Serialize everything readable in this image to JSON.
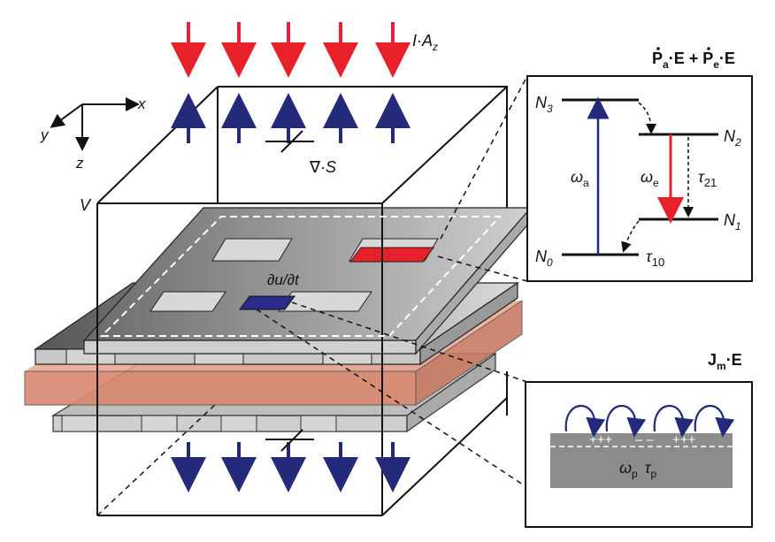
{
  "labels": {
    "incident_flux": "I·A",
    "incident_flux_sub": "z",
    "poynting": "∇·S",
    "volume": "V",
    "time_derivative": "∂u/∂t",
    "axis_x": "x",
    "axis_y": "y",
    "axis_z": "z"
  },
  "gain_panel": {
    "title_P": "P",
    "title_sub_a": "a",
    "title_dot_E": "·E + ",
    "title_P2": "P",
    "title_sub_e": "e",
    "title_dot_E2": "·E",
    "level_N3": "N",
    "level_N3_sub": "3",
    "level_N2": "N",
    "level_N2_sub": "2",
    "level_N1": "N",
    "level_N1_sub": "1",
    "level_N0": "N",
    "level_N0_sub": "0",
    "omega_a": "ω",
    "omega_a_sub": "a",
    "omega_e": "ω",
    "omega_e_sub": "e",
    "tau21": "τ",
    "tau21_sub": "21",
    "tau10": "τ",
    "tau10_sub": "10"
  },
  "metal_panel": {
    "title_J": "J",
    "title_sub": "m",
    "title_dot_E": "·E",
    "plus_charges": "+++",
    "minus_charges": "– –",
    "omega_p": "ω",
    "omega_p_sub": "p",
    "tau_p": "τ",
    "tau_p_sub": "p"
  },
  "colors": {
    "red_arrow": "#e8203a",
    "blue_arrow": "#232a7a",
    "gain_red": "#e8202a",
    "metal_blue": "#2b2b8a",
    "dielectric": "#e9a48c",
    "metal_gray": "#8c8c8c"
  },
  "icons": [
    "down-arrow-icon",
    "up-arrow-icon"
  ]
}
